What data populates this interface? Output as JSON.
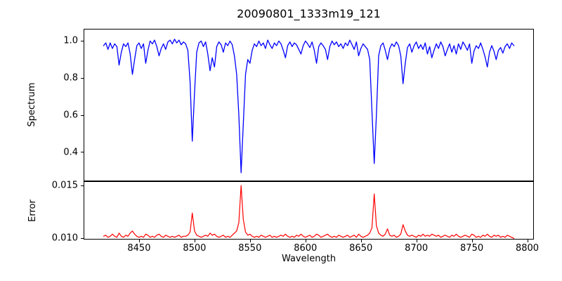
{
  "figure": {
    "background": "#ffffff",
    "frame_color": "#000000",
    "tick_color": "#000000"
  },
  "chart_data": {
    "type": "line",
    "title": "20090801_1333m19_121",
    "xlabel": "Wavelength",
    "grid": false,
    "legend": "none",
    "x_start": 8418,
    "x_step": 2,
    "n_points": 186,
    "xlim": [
      8400,
      8806
    ],
    "xticks": [
      {
        "v": 8450,
        "label": "8450"
      },
      {
        "v": 8500,
        "label": "8500"
      },
      {
        "v": 8550,
        "label": "8550"
      },
      {
        "v": 8600,
        "label": "8600"
      },
      {
        "v": 8650,
        "label": "8650"
      },
      {
        "v": 8700,
        "label": "8700"
      },
      {
        "v": 8750,
        "label": "8750"
      },
      {
        "v": 8800,
        "label": "8800"
      }
    ],
    "series": [
      {
        "name": "Spectrum",
        "panel": "top",
        "ylabel": "Spectrum",
        "color": "#0000ff",
        "ylim": [
          0.244,
          1.066
        ],
        "yticks": [
          {
            "v": 1.0,
            "label": "1.0"
          },
          {
            "v": 0.8,
            "label": "0.8"
          },
          {
            "v": 0.6,
            "label": "0.6"
          },
          {
            "v": 0.4,
            "label": "0.4"
          }
        ],
        "values": [
          0.975,
          0.99,
          0.955,
          0.99,
          0.96,
          0.985,
          0.97,
          0.87,
          0.94,
          0.985,
          0.97,
          0.99,
          0.93,
          0.82,
          0.9,
          0.975,
          0.99,
          0.96,
          0.985,
          0.88,
          0.95,
          1.0,
          0.985,
          1.005,
          0.97,
          0.92,
          0.96,
          0.985,
          0.955,
          0.995,
          1.005,
          0.985,
          1.01,
          0.99,
          1.005,
          0.98,
          0.995,
          0.985,
          0.95,
          0.78,
          0.46,
          0.72,
          0.94,
          0.99,
          1.0,
          0.97,
          0.995,
          0.93,
          0.84,
          0.91,
          0.86,
          0.97,
          0.995,
          0.98,
          0.94,
          0.99,
          0.975,
          1.0,
          0.98,
          0.92,
          0.82,
          0.6,
          0.29,
          0.55,
          0.82,
          0.9,
          0.88,
          0.95,
          0.985,
          0.97,
          1.0,
          0.975,
          0.99,
          0.96,
          1.005,
          0.98,
          0.96,
          0.99,
          0.975,
          1.0,
          0.985,
          0.95,
          0.91,
          0.975,
          0.995,
          0.97,
          0.99,
          0.98,
          0.955,
          0.93,
          0.975,
          1.0,
          0.985,
          0.965,
          0.995,
          0.95,
          0.88,
          0.97,
          0.99,
          0.975,
          0.955,
          0.9,
          0.97,
          1.0,
          0.98,
          0.995,
          0.97,
          0.985,
          0.96,
          0.99,
          0.975,
          1.005,
          0.98,
          0.955,
          0.995,
          0.92,
          0.96,
          0.985,
          0.97,
          0.955,
          0.9,
          0.62,
          0.34,
          0.6,
          0.92,
          0.975,
          0.99,
          0.95,
          0.9,
          0.96,
          0.985,
          0.97,
          0.995,
          0.975,
          0.92,
          0.77,
          0.88,
          0.965,
          0.985,
          0.94,
          0.975,
          0.995,
          0.96,
          0.98,
          0.955,
          0.99,
          0.93,
          0.97,
          0.91,
          0.95,
          0.985,
          0.96,
          0.995,
          0.97,
          0.92,
          0.955,
          0.985,
          0.94,
          0.975,
          0.93,
          0.985,
          0.955,
          0.995,
          0.975,
          0.95,
          0.985,
          0.88,
          0.945,
          0.975,
          0.96,
          0.99,
          0.955,
          0.915,
          0.86,
          0.94,
          0.975,
          0.945,
          0.9,
          0.95,
          0.965,
          0.935,
          0.97,
          0.985,
          0.96,
          0.99,
          0.975
        ]
      },
      {
        "name": "Error",
        "panel": "bottom",
        "ylabel": "Error",
        "color": "#ff0000",
        "ylim": [
          0.00989,
          0.0154
        ],
        "yticks": [
          {
            "v": 0.015,
            "label": "0.015"
          },
          {
            "v": 0.01,
            "label": "0.010"
          }
        ],
        "values": [
          0.0102,
          0.0103,
          0.0101,
          0.0102,
          0.0104,
          0.0102,
          0.0101,
          0.0105,
          0.0102,
          0.0101,
          0.0103,
          0.0102,
          0.0105,
          0.0107,
          0.0104,
          0.0102,
          0.0101,
          0.0102,
          0.0101,
          0.0104,
          0.0103,
          0.0101,
          0.0102,
          0.0101,
          0.0103,
          0.0104,
          0.0102,
          0.0101,
          0.0103,
          0.0102,
          0.0101,
          0.0102,
          0.0101,
          0.0102,
          0.0103,
          0.0101,
          0.0102,
          0.0102,
          0.0103,
          0.0106,
          0.0124,
          0.0107,
          0.0103,
          0.0102,
          0.0101,
          0.0102,
          0.0103,
          0.0102,
          0.0105,
          0.0103,
          0.0104,
          0.0102,
          0.0101,
          0.0102,
          0.0103,
          0.0101,
          0.0102,
          0.0101,
          0.0103,
          0.0105,
          0.0107,
          0.0115,
          0.015,
          0.0118,
          0.0106,
          0.0103,
          0.0104,
          0.0102,
          0.0101,
          0.0102,
          0.0101,
          0.0103,
          0.0102,
          0.0101,
          0.0102,
          0.0103,
          0.0101,
          0.0102,
          0.0101,
          0.0102,
          0.0103,
          0.0102,
          0.0104,
          0.0102,
          0.0101,
          0.0102,
          0.0101,
          0.0103,
          0.0102,
          0.0104,
          0.0102,
          0.0101,
          0.0102,
          0.0103,
          0.0101,
          0.0102,
          0.0104,
          0.0103,
          0.0101,
          0.0102,
          0.0103,
          0.0104,
          0.0102,
          0.0101,
          0.0102,
          0.0101,
          0.0103,
          0.0102,
          0.0101,
          0.0102,
          0.0103,
          0.0101,
          0.0102,
          0.0103,
          0.0101,
          0.0104,
          0.0102,
          0.0101,
          0.0102,
          0.0103,
          0.0105,
          0.011,
          0.0142,
          0.0112,
          0.0105,
          0.0103,
          0.0102,
          0.0104,
          0.0109,
          0.0103,
          0.0102,
          0.0103,
          0.0101,
          0.0102,
          0.0104,
          0.0113,
          0.0107,
          0.0103,
          0.0102,
          0.0103,
          0.0102,
          0.0101,
          0.0103,
          0.0102,
          0.0104,
          0.0102,
          0.0103,
          0.0102,
          0.0104,
          0.0103,
          0.0102,
          0.0103,
          0.0101,
          0.0102,
          0.0103,
          0.0102,
          0.0101,
          0.0103,
          0.0102,
          0.0104,
          0.0102,
          0.0101,
          0.0102,
          0.0103,
          0.0102,
          0.0101,
          0.0104,
          0.0103,
          0.0101,
          0.0102,
          0.0101,
          0.0103,
          0.0102,
          0.0104,
          0.0102,
          0.0101,
          0.0103,
          0.0102,
          0.0103,
          0.0101,
          0.0102,
          0.0101,
          0.0103,
          0.0102,
          0.0101,
          0.01
        ]
      }
    ]
  },
  "layout_text": {
    "note": ""
  }
}
